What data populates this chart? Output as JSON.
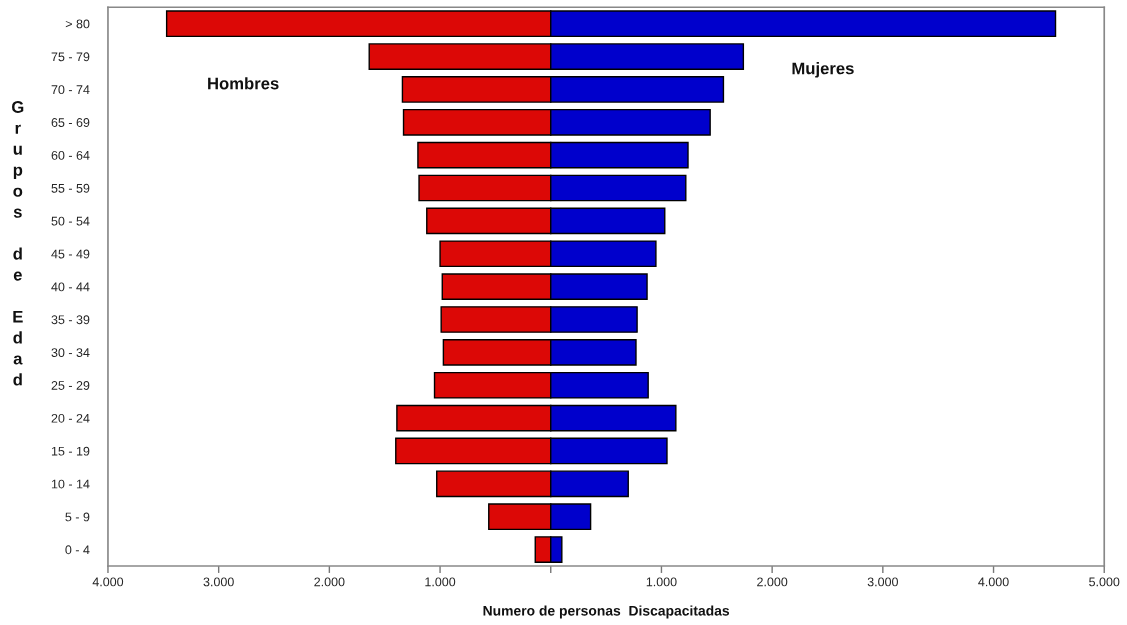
{
  "chart_data": {
    "type": "bar",
    "orientation": "horizontal",
    "stacked": true,
    "categories": [
      "> 80",
      "75 - 79",
      "70 - 74",
      "65 - 69",
      "60 - 64",
      "55 - 59",
      "50 - 54",
      "45 - 49",
      "40 - 44",
      "35 - 39",
      "30 - 34",
      "25 - 29",
      "20 - 24",
      "15 - 19",
      "10 - 14",
      "5 - 9",
      "0 - 4"
    ],
    "series": [
      {
        "name": "Hombres",
        "color": "#dc0806",
        "values": [
          -3470,
          -1640,
          -1340,
          -1330,
          -1200,
          -1190,
          -1120,
          -1000,
          -980,
          -990,
          -970,
          -1050,
          -1390,
          -1400,
          -1030,
          -560,
          -140
        ]
      },
      {
        "name": "Mujeres",
        "color": "#0000cc",
        "values": [
          4560,
          1740,
          1560,
          1440,
          1240,
          1220,
          1030,
          950,
          870,
          780,
          770,
          880,
          1130,
          1050,
          700,
          360,
          100
        ]
      }
    ],
    "xlim": [
      -4000,
      5000
    ],
    "xticks": [
      {
        "value": -4000,
        "label": "4.000"
      },
      {
        "value": -3000,
        "label": "3.000"
      },
      {
        "value": -2000,
        "label": "2.000"
      },
      {
        "value": -1000,
        "label": "1.000"
      },
      {
        "value": 0,
        "label": null
      },
      {
        "value": 1000,
        "label": "1.000"
      },
      {
        "value": 2000,
        "label": "2.000"
      },
      {
        "value": 3000,
        "label": "3.000"
      },
      {
        "value": 4000,
        "label": "4.000"
      },
      {
        "value": 5000,
        "label": "5.000"
      }
    ],
    "xlabel": "Numero de personas  Discapacitadas",
    "ylabel": "Grupos de Edad"
  }
}
